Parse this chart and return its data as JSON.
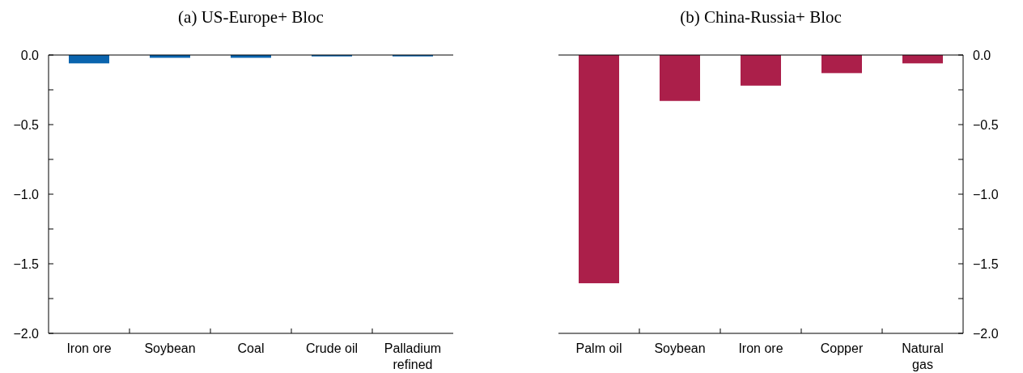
{
  "chart_data": [
    {
      "type": "bar",
      "title": "(a) US-Europe+ Bloc",
      "categories": [
        "Iron ore",
        "Soybean",
        "Coal",
        "Crude oil",
        "Palladium refined"
      ],
      "values": [
        -0.06,
        -0.02,
        -0.02,
        -0.01,
        -0.01
      ],
      "color": "#0a64ae",
      "ylim": [
        -2,
        0
      ],
      "yticks": [
        {
          "value": 0,
          "label": "0.0"
        },
        {
          "value": -0.25,
          "label": null
        },
        {
          "value": -0.5,
          "label": "−0.5"
        },
        {
          "value": -0.75,
          "label": null
        },
        {
          "value": -1,
          "label": "−1.0"
        },
        {
          "value": -1.25,
          "label": null
        },
        {
          "value": -1.5,
          "label": "−1.5"
        },
        {
          "value": -1.75,
          "label": null
        },
        {
          "value": -2,
          "label": "−2.0"
        }
      ]
    },
    {
      "type": "bar",
      "title": "(b) China-Russia+ Bloc",
      "categories": [
        "Palm oil",
        "Soybean",
        "Iron ore",
        "Copper",
        "Natural gas"
      ],
      "series": [
        {
          "color": "#ab1f4a",
          "axis": "y2",
          "values": [
            -1.64,
            -0.33,
            -0.22,
            -0.13,
            -0.06
          ]
        }
      ],
      "y2lim": [
        -2,
        0
      ],
      "y2ticks": [
        {
          "value": 0,
          "label": "0.0"
        },
        {
          "value": -0.25,
          "label": null
        },
        {
          "value": -0.5,
          "label": "−0.5"
        },
        {
          "value": -0.75,
          "label": null
        },
        {
          "value": -1,
          "label": "−1.0"
        },
        {
          "value": -1.25,
          "label": null
        },
        {
          "value": -1.5,
          "label": "−1.5"
        },
        {
          "value": -1.75,
          "label": null
        },
        {
          "value": -2,
          "label": "−2.0"
        }
      ]
    }
  ]
}
